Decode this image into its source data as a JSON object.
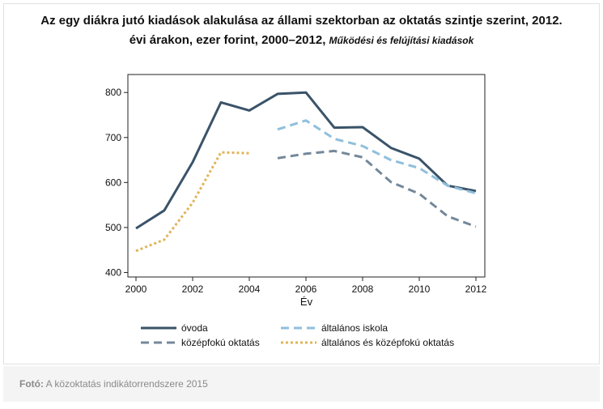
{
  "title": {
    "line1": "Az egy diákra jutó kiadások alakulása az állami szektorban az oktatás szintje szerint, 2012.",
    "line2_main": "évi árakon, ezer forint, 2000–2012,",
    "line2_sub": "Működési és felújítási kiadások"
  },
  "caption": {
    "prefix": "Fotó:",
    "text": "A közoktatás indikátorrendszere 2015"
  },
  "chart_data": {
    "type": "line",
    "xlabel": "Év",
    "ylabel": "",
    "xlim": [
      2000,
      2012
    ],
    "ylim": [
      390,
      840
    ],
    "x_ticks": [
      2000,
      2002,
      2004,
      2006,
      2008,
      2010,
      2012
    ],
    "y_ticks": [
      400,
      500,
      600,
      700,
      800
    ],
    "grid": false,
    "legend": "bottom",
    "series": [
      {
        "name": "óvoda",
        "color": "#3a5369",
        "dash": "solid",
        "points": [
          [
            2000,
            498
          ],
          [
            2001,
            538
          ],
          [
            2002,
            645
          ],
          [
            2003,
            778
          ],
          [
            2004,
            760
          ],
          [
            2005,
            797
          ],
          [
            2006,
            800
          ],
          [
            2007,
            722
          ],
          [
            2008,
            723
          ],
          [
            2009,
            677
          ],
          [
            2010,
            653
          ],
          [
            2011,
            593
          ],
          [
            2012,
            581
          ]
        ]
      },
      {
        "name": "általános iskola",
        "color": "#8fbfdc",
        "dash": "dashed",
        "points": [
          [
            2005,
            718
          ],
          [
            2006,
            738
          ],
          [
            2007,
            697
          ],
          [
            2008,
            681
          ],
          [
            2009,
            650
          ],
          [
            2010,
            632
          ],
          [
            2011,
            593
          ],
          [
            2012,
            576
          ]
        ]
      },
      {
        "name": "középfokú oktatás",
        "color": "#74889a",
        "dash": "dashed",
        "points": [
          [
            2005,
            654
          ],
          [
            2006,
            664
          ],
          [
            2007,
            670
          ],
          [
            2008,
            656
          ],
          [
            2009,
            601
          ],
          [
            2010,
            575
          ],
          [
            2011,
            525
          ],
          [
            2012,
            502
          ]
        ]
      },
      {
        "name": "általános és középfokú oktatás",
        "color": "#e0b55a",
        "dash": "dotted",
        "points": [
          [
            2000,
            448
          ],
          [
            2001,
            473
          ],
          [
            2002,
            555
          ],
          [
            2003,
            667
          ],
          [
            2004,
            665
          ]
        ]
      }
    ]
  }
}
